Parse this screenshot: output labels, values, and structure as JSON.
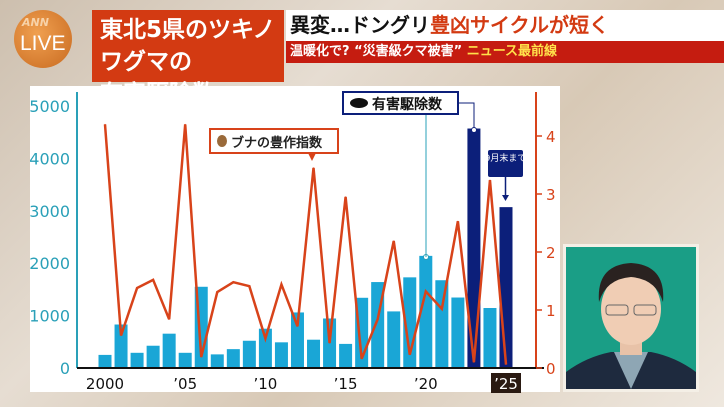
{
  "logo": {
    "network": "ANN",
    "live": "LIVE"
  },
  "title": {
    "line1": "東北5県のツキノワグマの",
    "line2": "有害駆除数"
  },
  "headline": {
    "part1": "異変…ドングリ",
    "part2": "豊凶サイクルが短く"
  },
  "subline": {
    "text": "温暖化で? “災害級クマ被害”",
    "program": "ニュース最前線"
  },
  "colors": {
    "bar": "#1aa6d6",
    "bar_highlight": "#0c1f7a",
    "line": "#d8431a",
    "title_bg": "#d33a12",
    "left_axis": "#2aa0b8",
    "right_axis": "#d8431a"
  },
  "chart_data": {
    "type": "bar+line",
    "categories": [
      2000,
      2001,
      2002,
      2003,
      2004,
      2005,
      2006,
      2007,
      2008,
      2009,
      2010,
      2011,
      2012,
      2013,
      2014,
      2015,
      2016,
      2017,
      2018,
      2019,
      2020,
      2021,
      2022,
      2023,
      2024,
      2025
    ],
    "x_tick_labels": [
      {
        "year": 2000,
        "label": "2000"
      },
      {
        "year": 2005,
        "label": "’05"
      },
      {
        "year": 2010,
        "label": "’10"
      },
      {
        "year": 2015,
        "label": "’15"
      },
      {
        "year": 2020,
        "label": "’20"
      },
      {
        "year": 2025,
        "label": "’25"
      }
    ],
    "y_left": {
      "ylim": [
        0,
        5000
      ],
      "ticks": [
        "0",
        "1000",
        "2000",
        "3000",
        "4000",
        "5000"
      ]
    },
    "y_right": {
      "ylim": [
        0,
        4.5
      ],
      "ticks": [
        "0",
        "1",
        "2",
        "3",
        "4"
      ]
    },
    "series": [
      {
        "name": "有害駆除数",
        "type": "bar",
        "axis": "left",
        "values": [
          250,
          830,
          290,
          425,
          655,
          290,
          1550,
          260,
          360,
          520,
          750,
          490,
          1060,
          540,
          945,
          460,
          1340,
          1640,
          1080,
          1730,
          2140,
          1675,
          1345,
          4570,
          1145,
          3070
        ],
        "highlight_years": [
          2023,
          2025
        ]
      },
      {
        "name": "ブナの豊作指数",
        "type": "line",
        "axis": "right",
        "values": [
          4.2,
          0.56,
          1.38,
          1.52,
          0.84,
          4.2,
          0.19,
          1.31,
          1.48,
          1.41,
          0.51,
          1.44,
          0.72,
          3.45,
          0.43,
          2.95,
          0.16,
          0.84,
          2.19,
          0.23,
          1.32,
          1.02,
          2.53,
          0.1,
          3.24,
          0.06
        ]
      }
    ],
    "legend": {
      "bar_label": "有害駆除数",
      "line_label": "ブナの豊作指数"
    },
    "annotation": "9月末まで",
    "grid": false
  }
}
